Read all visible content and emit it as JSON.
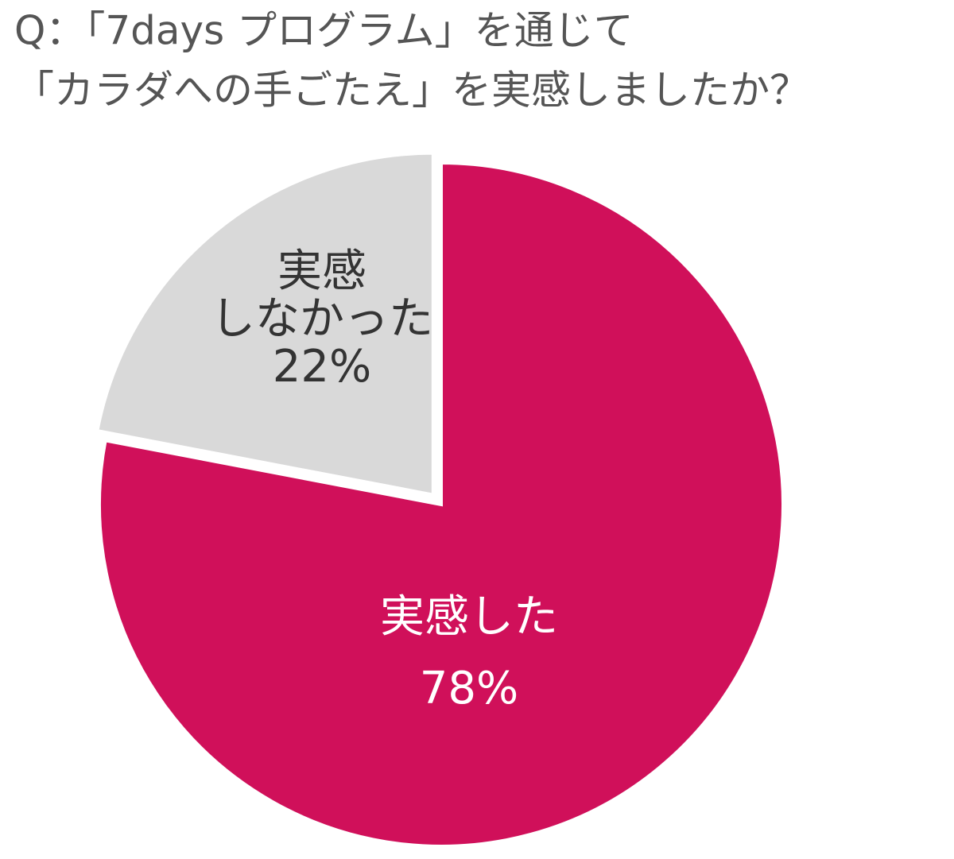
{
  "chart_data": {
    "type": "pie",
    "title": [
      "Q：「7days プログラム」を通じて",
      "「カラダへの手ごたえ」を実感しましたか？"
    ],
    "categories": [
      [
        "実感した"
      ],
      [
        "実感",
        "しなかった"
      ]
    ],
    "values": [
      78,
      22
    ],
    "value_labels": [
      "78%",
      "22%"
    ],
    "colors": [
      "#d0105a",
      "#d9d9d9"
    ],
    "label_colors": [
      "#ffffff",
      "#333333"
    ],
    "exploded": [
      false,
      true
    ]
  }
}
